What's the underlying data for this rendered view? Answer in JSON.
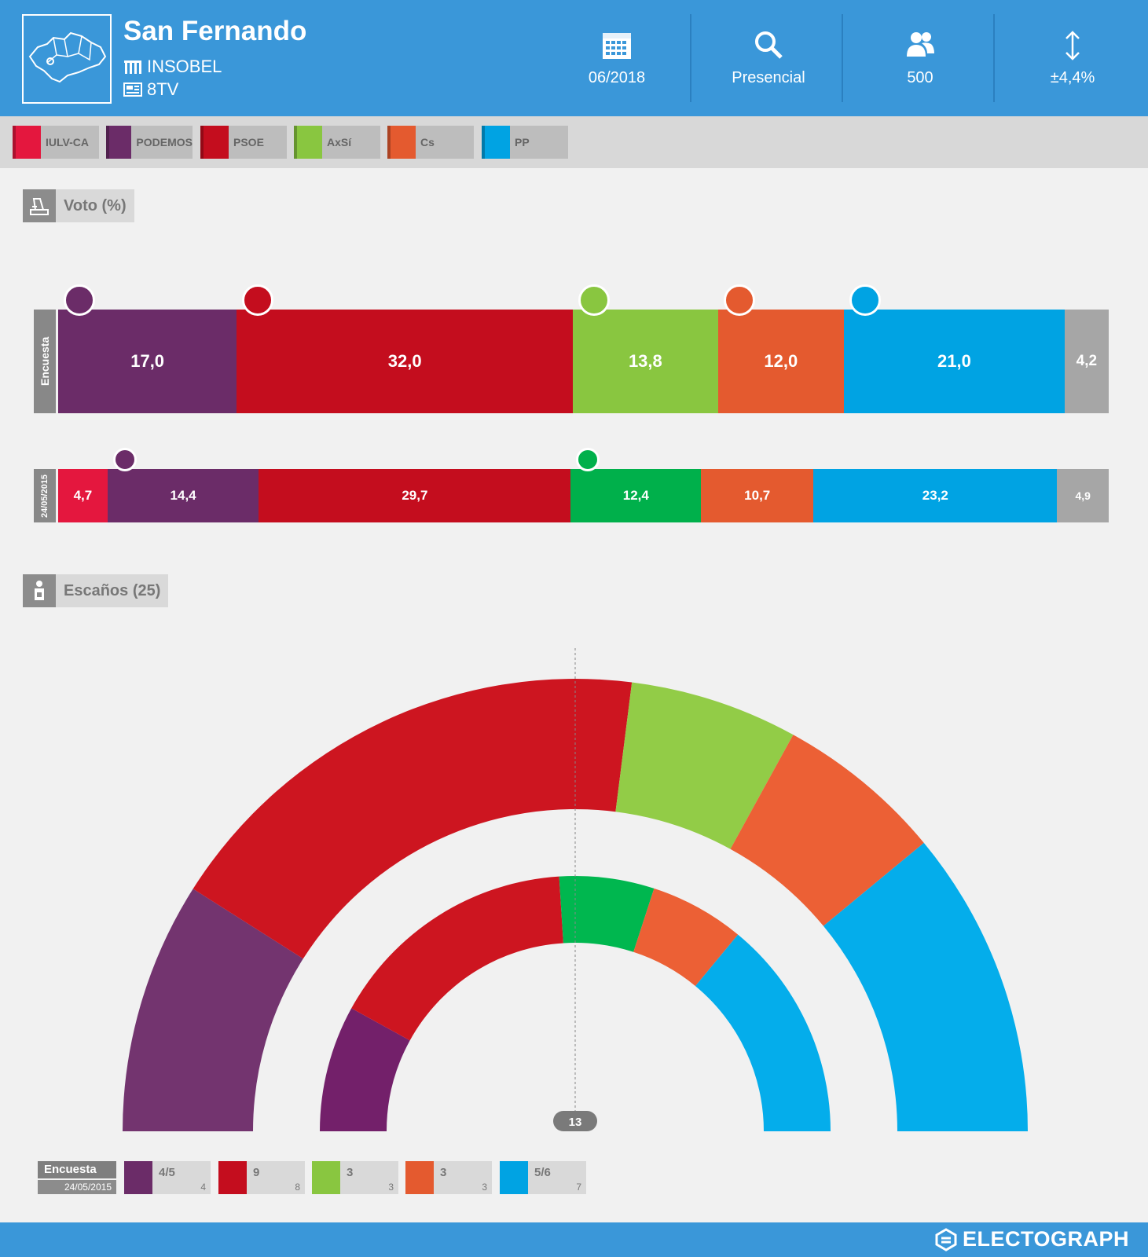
{
  "header": {
    "title": "San Fernando",
    "pollster": "INSOBEL",
    "media": "8TV",
    "date": "06/2018",
    "method": "Presencial",
    "sample": "500",
    "error": "±4,4%"
  },
  "legend": [
    {
      "label": "IULV-CA",
      "color": "#e4173e"
    },
    {
      "label": "PODEMOS",
      "color": "#6b2c68"
    },
    {
      "label": "PSOE",
      "color": "#c40d1e"
    },
    {
      "label": "AxSí",
      "color": "#89c640"
    },
    {
      "label": "Cs",
      "color": "#e45a2f"
    },
    {
      "label": "PP",
      "color": "#00a3e3"
    }
  ],
  "sections": {
    "vote_title": "Voto (%)",
    "seats_title": "Escaños (25)"
  },
  "chart_data": [
    {
      "type": "bar",
      "title": "Voto (%)",
      "series": [
        {
          "name": "Encuesta",
          "parties": [
            "PODEMOS",
            "PSOE",
            "AxSí",
            "Cs",
            "PP",
            "Otros"
          ],
          "values": [
            17.0,
            32.0,
            13.8,
            12.0,
            21.0,
            4.2
          ],
          "labels": [
            "17,0",
            "32,0",
            "13,8",
            "12,0",
            "21,0",
            "4,2"
          ],
          "colors": [
            "#6b2c68",
            "#c40d1e",
            "#89c640",
            "#e45a2f",
            "#00a3e3",
            "#a6a6a6"
          ]
        },
        {
          "name": "24/05/2015",
          "parties": [
            "IULV-CA",
            "PODEMOS",
            "PSOE",
            "AxSí",
            "Cs",
            "PP",
            "Otros"
          ],
          "values": [
            4.7,
            14.4,
            29.7,
            12.4,
            10.7,
            23.2,
            4.9
          ],
          "labels": [
            "4,7",
            "14,4",
            "29,7",
            "12,4",
            "10,7",
            "23,2",
            "4,9"
          ],
          "colors": [
            "#e4173e",
            "#6b2c68",
            "#c40d1e",
            "#00b04b",
            "#e45a2f",
            "#00a3e3",
            "#a6a6a6"
          ]
        }
      ]
    },
    {
      "type": "pie",
      "title": "Escaños (25)",
      "majority_label": "13",
      "series": [
        {
          "name": "Encuesta",
          "parties": [
            "PODEMOS",
            "PSOE",
            "AxSí",
            "Cs",
            "PP"
          ],
          "values": [
            4.5,
            9,
            3,
            3,
            5.5
          ],
          "colors": [
            "#73346f",
            "#cd1520",
            "#92cc47",
            "#ec6035",
            "#04adeb"
          ]
        },
        {
          "name": "24/05/2015",
          "parties": [
            "PODEMOS",
            "PSOE",
            "AxSí",
            "Cs",
            "PP"
          ],
          "values": [
            4,
            8,
            3,
            3,
            7
          ],
          "colors": [
            "#73206a",
            "#cd1520",
            "#00b74f",
            "#ec6035",
            "#04adeb"
          ]
        }
      ]
    }
  ],
  "seats_legend": {
    "poll_label": "Encuesta",
    "prev_label": "24/05/2015",
    "items": [
      {
        "party": "PODEMOS",
        "poll": "4/5",
        "prev": "4",
        "color": "#6b2c68"
      },
      {
        "party": "PSOE",
        "poll": "9",
        "prev": "8",
        "color": "#c40d1e"
      },
      {
        "party": "AxSí",
        "poll": "3",
        "prev": "3",
        "color": "#89c640"
      },
      {
        "party": "Cs",
        "poll": "3",
        "prev": "3",
        "color": "#e45a2f"
      },
      {
        "party": "PP",
        "poll": "5/6",
        "prev": "7",
        "color": "#00a3e3"
      }
    ]
  },
  "footer": {
    "brand": "ELECTOGRAPH"
  }
}
